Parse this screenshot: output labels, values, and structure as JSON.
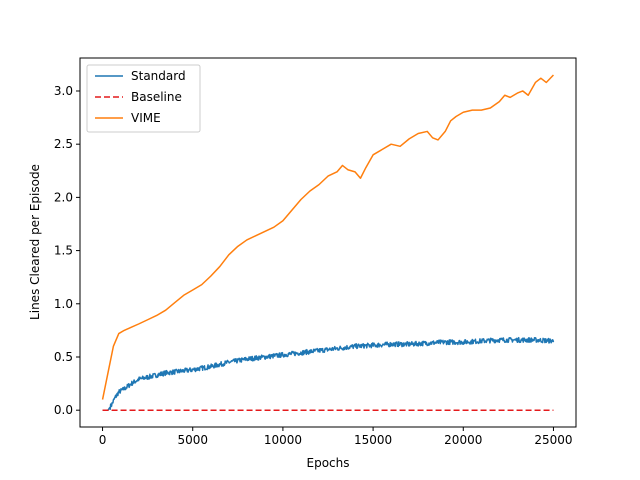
{
  "chart_data": {
    "type": "line",
    "xlabel": "Epochs",
    "ylabel": "Lines Cleared per Episode",
    "xlim": [
      -1250,
      26250
    ],
    "ylim": [
      -0.158,
      3.31
    ],
    "xticks": [
      0,
      5000,
      10000,
      15000,
      20000,
      25000
    ],
    "xtick_labels": [
      "0",
      "5000",
      "10000",
      "15000",
      "20000",
      "25000"
    ],
    "yticks": [
      0.0,
      0.5,
      1.0,
      1.5,
      2.0,
      2.5,
      3.0
    ],
    "ytick_labels": [
      "0.0",
      "0.5",
      "1.0",
      "1.5",
      "2.0",
      "2.5",
      "3.0"
    ],
    "grid": false,
    "legend_position": "top-left",
    "series": [
      {
        "name": "Standard",
        "color": "#1f77b4",
        "style": "solid",
        "noisy": true,
        "x": [
          0,
          300,
          500,
          700,
          900,
          1200,
          1600,
          2000,
          2500,
          3000,
          3500,
          4000,
          5000,
          6000,
          7000,
          8000,
          9000,
          10000,
          11000,
          12000,
          13000,
          14000,
          15000,
          16000,
          17000,
          18000,
          19000,
          20000,
          21000,
          22000,
          23000,
          24000,
          25000
        ],
        "y": [
          0.0,
          0.0,
          0.05,
          0.12,
          0.17,
          0.2,
          0.25,
          0.29,
          0.31,
          0.33,
          0.35,
          0.36,
          0.38,
          0.41,
          0.45,
          0.48,
          0.5,
          0.52,
          0.54,
          0.56,
          0.58,
          0.6,
          0.61,
          0.62,
          0.62,
          0.63,
          0.64,
          0.64,
          0.65,
          0.66,
          0.66,
          0.66,
          0.65
        ]
      },
      {
        "name": "Baseline",
        "color": "#e41a1c",
        "style": "dashed",
        "x": [
          0,
          25000
        ],
        "y": [
          0.0,
          0.0
        ]
      },
      {
        "name": "VIME",
        "color": "#ff7f0e",
        "style": "solid",
        "x": [
          0,
          300,
          600,
          900,
          1200,
          1600,
          2000,
          2500,
          3000,
          3500,
          4000,
          4500,
          5000,
          5500,
          6000,
          6500,
          7000,
          7500,
          8000,
          8500,
          9000,
          9500,
          10000,
          10500,
          11000,
          11500,
          12000,
          12500,
          13000,
          13300,
          13600,
          14000,
          14300,
          14600,
          15000,
          15500,
          16000,
          16500,
          17000,
          17500,
          18000,
          18300,
          18600,
          19000,
          19300,
          19600,
          20000,
          20500,
          21000,
          21500,
          22000,
          22300,
          22600,
          23000,
          23300,
          23600,
          24000,
          24300,
          24600,
          25000
        ],
        "y": [
          0.1,
          0.35,
          0.6,
          0.72,
          0.75,
          0.78,
          0.81,
          0.85,
          0.89,
          0.94,
          1.01,
          1.08,
          1.13,
          1.18,
          1.26,
          1.35,
          1.46,
          1.54,
          1.6,
          1.64,
          1.68,
          1.72,
          1.78,
          1.88,
          1.98,
          2.06,
          2.12,
          2.2,
          2.24,
          2.3,
          2.26,
          2.24,
          2.18,
          2.28,
          2.4,
          2.45,
          2.5,
          2.48,
          2.55,
          2.6,
          2.62,
          2.56,
          2.54,
          2.62,
          2.72,
          2.76,
          2.8,
          2.82,
          2.82,
          2.84,
          2.9,
          2.96,
          2.94,
          2.98,
          3.0,
          2.96,
          3.08,
          3.12,
          3.08,
          3.15
        ]
      }
    ]
  }
}
